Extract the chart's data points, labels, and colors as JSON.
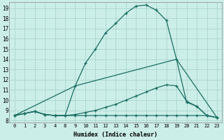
{
  "xlabel": "Humidex (Indice chaleur)",
  "bg_color": "#cceee8",
  "grid_color": "#aad4ce",
  "line_color": "#1a6e64",
  "xtick_labels": [
    "0",
    "1",
    "2",
    "3",
    "4",
    "8",
    "9",
    "10",
    "11",
    "12",
    "13",
    "14",
    "15",
    "16",
    "17",
    "18",
    "19",
    "20",
    "21",
    "22",
    "23"
  ],
  "yticks": [
    8,
    9,
    10,
    11,
    12,
    13,
    14,
    15,
    16,
    17,
    18,
    19
  ],
  "ylim": [
    7.8,
    19.6
  ],
  "line1_y": [
    8.5,
    8.7,
    8.9,
    8.6,
    8.5,
    8.5,
    11.4,
    13.6,
    15.0,
    16.6,
    17.5,
    18.5,
    19.2,
    19.3,
    18.8,
    17.8,
    14.0,
    9.8,
    9.4,
    8.5,
    8.3
  ],
  "line2_y": [
    8.5,
    8.7,
    8.9,
    8.6,
    8.5,
    8.5,
    8.6,
    8.8,
    9.0,
    9.3,
    9.6,
    10.0,
    10.4,
    10.8,
    11.2,
    11.5,
    11.4,
    9.9,
    9.4,
    8.5,
    8.3
  ],
  "line3_y": [
    8.5,
    8.7,
    8.9,
    8.6,
    8.5,
    8.5,
    8.5,
    8.5,
    8.5,
    8.5,
    8.5,
    8.5,
    8.5,
    8.5,
    8.5,
    8.5,
    8.5,
    8.5,
    8.5,
    8.5,
    8.3
  ],
  "line4_indices": [
    0,
    6,
    16,
    20
  ],
  "line4_y": [
    8.5,
    11.4,
    14.0,
    8.3
  ]
}
